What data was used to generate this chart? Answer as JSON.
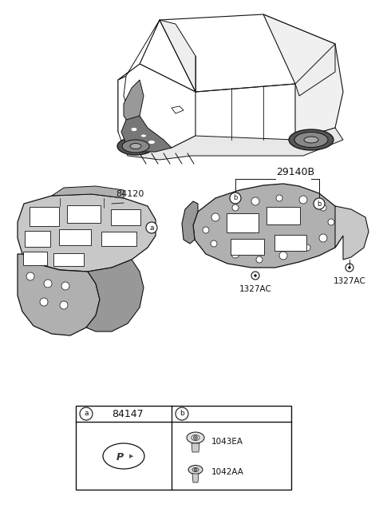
{
  "bg_color": "#ffffff",
  "fig_width": 4.8,
  "fig_height": 6.56,
  "dpi": 100,
  "parts": {
    "part_a_label": "84120",
    "part_b_label": "29140B",
    "fastener1": "1327AC",
    "fastener2": "1327AC",
    "table_part_a": "84147",
    "table_part_b1": "1043EA",
    "table_part_b2": "1042AA"
  },
  "text_color": "#111111",
  "line_color": "#111111",
  "part_fill": "#b0b0b0",
  "part_fill2": "#c8c8c8",
  "part_fill3": "#989898"
}
